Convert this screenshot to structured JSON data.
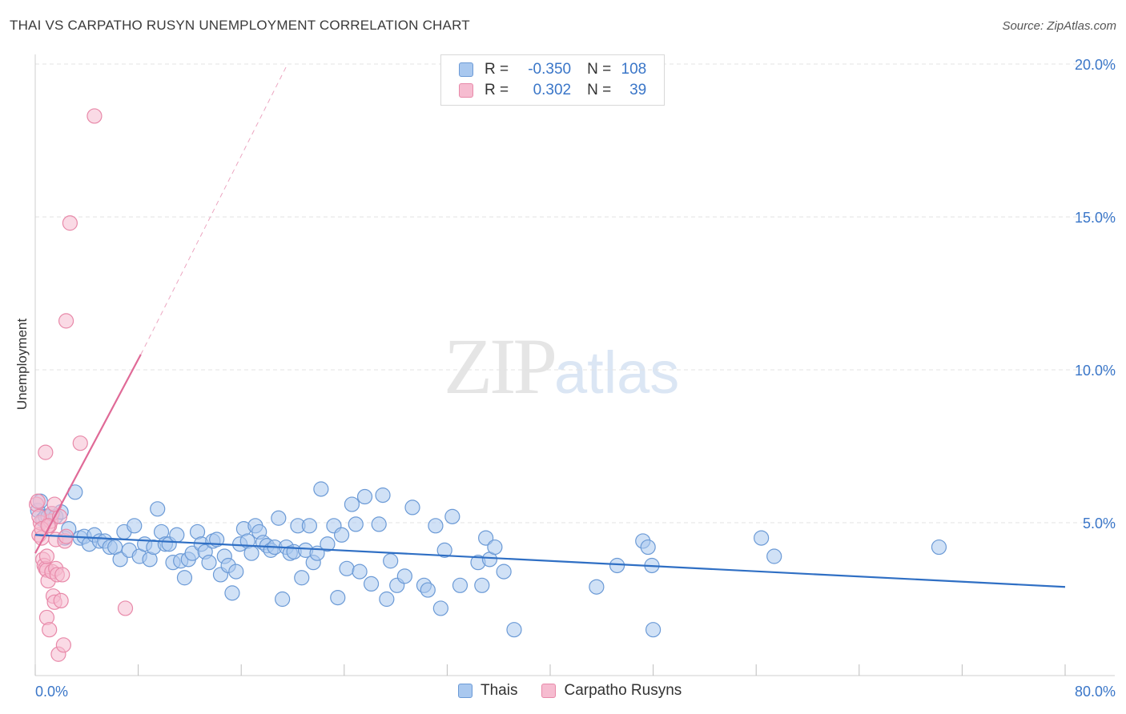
{
  "header": {
    "title": "THAI VS CARPATHO RUSYN UNEMPLOYMENT CORRELATION CHART",
    "source": "Source: ZipAtlas.com"
  },
  "watermark": {
    "zip": "ZIP",
    "atlas": "atlas"
  },
  "colors": {
    "thai_fill": "#a9c8ef",
    "thai_stroke": "#6b9ad6",
    "thai_line": "#2f6fc4",
    "rusyn_fill": "#f6bcd0",
    "rusyn_stroke": "#e889a9",
    "rusyn_line": "#e06a97",
    "grid": "#e3e3e3",
    "tick_text": "#3a76c8"
  },
  "legend": {
    "thai": {
      "r_label": "R =",
      "r_value": "-0.350",
      "n_label": "N =",
      "n_value": "108"
    },
    "rusyn": {
      "r_label": "R =",
      "r_value": "0.302",
      "n_label": "N =",
      "n_value": "39"
    }
  },
  "bottom_legend": {
    "thai": "Thais",
    "rusyn": "Carpatho Rusyns"
  },
  "chart_data": {
    "type": "scatter",
    "title": "THAI VS CARPATHO RUSYN UNEMPLOYMENT CORRELATION CHART",
    "xlabel": "",
    "ylabel": "Unemployment",
    "xlim": [
      0,
      80
    ],
    "ylim": [
      0,
      20
    ],
    "x_tick_labels": [
      "0.0%",
      "80.0%"
    ],
    "y_ticks": [
      5,
      10,
      15,
      20
    ],
    "y_tick_labels": [
      "5.0%",
      "10.0%",
      "15.0%",
      "20.0%"
    ],
    "series": [
      {
        "name": "Thais",
        "r": -0.35,
        "n": 108,
        "trend": {
          "x0": 0,
          "y0": 4.6,
          "x1": 80,
          "y1": 2.9
        },
        "points": [
          [
            0.2,
            5.4
          ],
          [
            0.4,
            5.7
          ],
          [
            0.6,
            5.1
          ],
          [
            0.8,
            5.2
          ],
          [
            1.0,
            5.2
          ],
          [
            1.3,
            5.3
          ],
          [
            1.6,
            5.2
          ],
          [
            2.0,
            5.35
          ],
          [
            2.3,
            4.5
          ],
          [
            2.6,
            4.8
          ],
          [
            3.1,
            6.0
          ],
          [
            3.5,
            4.5
          ],
          [
            3.8,
            4.55
          ],
          [
            4.2,
            4.3
          ],
          [
            4.6,
            4.6
          ],
          [
            5.0,
            4.4
          ],
          [
            5.4,
            4.4
          ],
          [
            5.8,
            4.2
          ],
          [
            6.2,
            4.2
          ],
          [
            6.6,
            3.8
          ],
          [
            6.9,
            4.7
          ],
          [
            7.3,
            4.1
          ],
          [
            7.7,
            4.9
          ],
          [
            8.1,
            3.9
          ],
          [
            8.5,
            4.3
          ],
          [
            8.9,
            3.8
          ],
          [
            9.2,
            4.2
          ],
          [
            9.5,
            5.45
          ],
          [
            9.8,
            4.7
          ],
          [
            10.1,
            4.3
          ],
          [
            10.4,
            4.3
          ],
          [
            10.7,
            3.7
          ],
          [
            11.0,
            4.6
          ],
          [
            11.3,
            3.75
          ],
          [
            11.6,
            3.2
          ],
          [
            11.9,
            3.8
          ],
          [
            12.2,
            4.0
          ],
          [
            12.6,
            4.7
          ],
          [
            12.9,
            4.3
          ],
          [
            13.2,
            4.05
          ],
          [
            13.5,
            3.7
          ],
          [
            13.8,
            4.4
          ],
          [
            14.1,
            4.45
          ],
          [
            14.4,
            3.3
          ],
          [
            14.7,
            3.9
          ],
          [
            15.0,
            3.6
          ],
          [
            15.3,
            2.7
          ],
          [
            15.6,
            3.4
          ],
          [
            15.9,
            4.3
          ],
          [
            16.2,
            4.8
          ],
          [
            16.5,
            4.4
          ],
          [
            16.8,
            4.0
          ],
          [
            17.1,
            4.9
          ],
          [
            17.4,
            4.7
          ],
          [
            17.7,
            4.35
          ],
          [
            18.0,
            4.25
          ],
          [
            18.3,
            4.1
          ],
          [
            18.6,
            4.2
          ],
          [
            18.9,
            5.15
          ],
          [
            19.2,
            2.5
          ],
          [
            19.5,
            4.2
          ],
          [
            19.8,
            4.0
          ],
          [
            20.1,
            4.05
          ],
          [
            20.4,
            4.9
          ],
          [
            20.7,
            3.2
          ],
          [
            21.0,
            4.1
          ],
          [
            21.3,
            4.9
          ],
          [
            21.6,
            3.7
          ],
          [
            21.9,
            4.0
          ],
          [
            22.2,
            6.1
          ],
          [
            22.7,
            4.3
          ],
          [
            23.2,
            4.9
          ],
          [
            23.5,
            2.55
          ],
          [
            23.8,
            4.6
          ],
          [
            24.2,
            3.5
          ],
          [
            24.6,
            5.6
          ],
          [
            24.9,
            4.95
          ],
          [
            25.2,
            3.4
          ],
          [
            25.6,
            5.85
          ],
          [
            26.1,
            3.0
          ],
          [
            26.7,
            4.95
          ],
          [
            27.0,
            5.9
          ],
          [
            27.3,
            2.5
          ],
          [
            27.6,
            3.75
          ],
          [
            28.1,
            2.95
          ],
          [
            28.7,
            3.25
          ],
          [
            29.3,
            5.5
          ],
          [
            30.2,
            2.95
          ],
          [
            30.5,
            2.8
          ],
          [
            31.1,
            4.9
          ],
          [
            31.5,
            2.2
          ],
          [
            31.8,
            4.1
          ],
          [
            32.4,
            5.2
          ],
          [
            33.0,
            2.95
          ],
          [
            34.4,
            3.7
          ],
          [
            34.7,
            2.95
          ],
          [
            35.0,
            4.5
          ],
          [
            35.3,
            3.8
          ],
          [
            35.7,
            4.2
          ],
          [
            36.4,
            3.4
          ],
          [
            37.2,
            1.5
          ],
          [
            43.6,
            2.9
          ],
          [
            45.2,
            3.6
          ],
          [
            47.2,
            4.4
          ],
          [
            47.6,
            4.2
          ],
          [
            47.9,
            3.6
          ],
          [
            48.0,
            1.5
          ],
          [
            56.4,
            4.5
          ],
          [
            57.4,
            3.9
          ],
          [
            70.2,
            4.2
          ]
        ]
      },
      {
        "name": "Carpatho Rusyns",
        "r": 0.302,
        "n": 39,
        "trend": {
          "x0": 0,
          "y0": 4.0,
          "x1": 8.2,
          "y1": 10.5,
          "dash_to": {
            "x": 19.6,
            "y": 20.0
          }
        },
        "points": [
          [
            0.1,
            5.6
          ],
          [
            0.2,
            5.7
          ],
          [
            0.3,
            4.6
          ],
          [
            0.4,
            5.0
          ],
          [
            0.5,
            4.5
          ],
          [
            0.6,
            3.8
          ],
          [
            0.7,
            3.6
          ],
          [
            0.8,
            3.5
          ],
          [
            0.9,
            3.45
          ],
          [
            0.9,
            3.9
          ],
          [
            1.0,
            3.1
          ],
          [
            1.1,
            4.9
          ],
          [
            1.2,
            5.05
          ],
          [
            1.3,
            5.3
          ],
          [
            1.3,
            3.4
          ],
          [
            1.4,
            2.6
          ],
          [
            1.5,
            2.4
          ],
          [
            1.6,
            3.5
          ],
          [
            1.6,
            4.45
          ],
          [
            1.7,
            3.3
          ],
          [
            1.8,
            0.7
          ],
          [
            1.9,
            5.2
          ],
          [
            2.0,
            2.45
          ],
          [
            2.1,
            3.3
          ],
          [
            2.2,
            1.0
          ],
          [
            2.3,
            4.4
          ],
          [
            2.4,
            4.55
          ],
          [
            0.8,
            7.3
          ],
          [
            0.9,
            1.9
          ],
          [
            1.1,
            1.5
          ],
          [
            2.4,
            11.6
          ],
          [
            2.7,
            14.8
          ],
          [
            3.5,
            7.6
          ],
          [
            4.6,
            18.3
          ],
          [
            7.0,
            2.2
          ],
          [
            0.3,
            5.2
          ],
          [
            0.5,
            4.8
          ],
          [
            1.0,
            4.9
          ],
          [
            1.5,
            5.6
          ]
        ]
      }
    ]
  }
}
